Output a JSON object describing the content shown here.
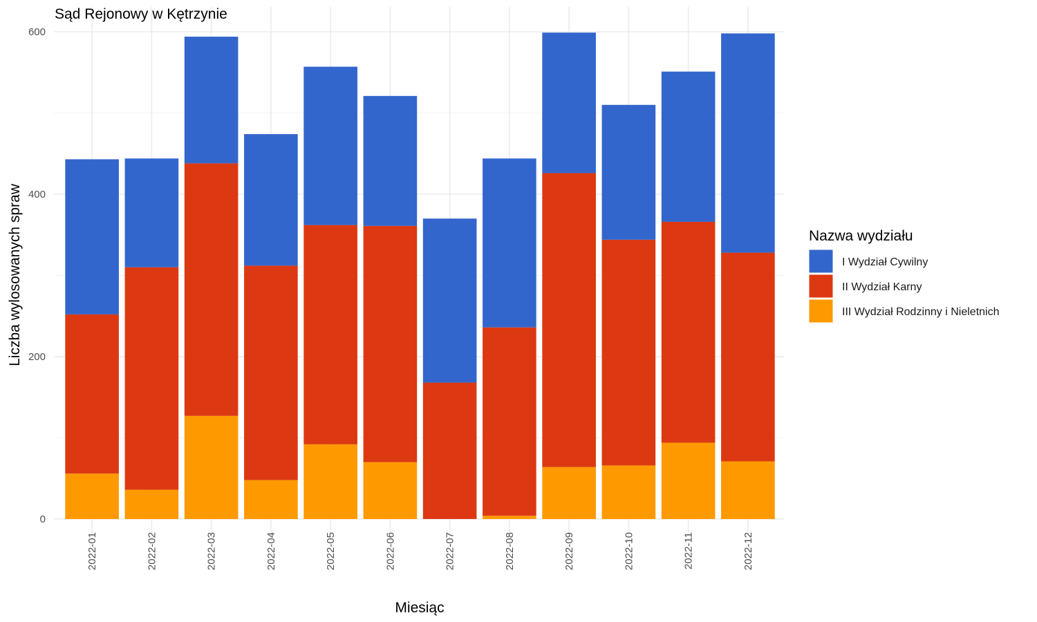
{
  "chart_data": {
    "type": "bar",
    "stacked": true,
    "title": "Sąd Rejonowy w Kętrzynie",
    "xlabel": "Miesiąc",
    "ylabel": "Liczba wylosowanych spraw",
    "ylim": [
      0,
      600
    ],
    "yticks": [
      0,
      200,
      400,
      600
    ],
    "grid": true,
    "legend_position": "right",
    "legend_title": "Nazwa wydziału",
    "categories": [
      "2022-01",
      "2022-02",
      "2022-03",
      "2022-04",
      "2022-05",
      "2022-06",
      "2022-07",
      "2022-08",
      "2022-09",
      "2022-10",
      "2022-11",
      "2022-12"
    ],
    "series": [
      {
        "name": "III Wydział Rodzinny i Nieletnich",
        "color": "#ff9900",
        "values": [
          56,
          36,
          127,
          48,
          92,
          70,
          0,
          4,
          64,
          66,
          94,
          71
        ]
      },
      {
        "name": "II Wydział Karny",
        "color": "#dc3912",
        "values": [
          196,
          274,
          311,
          264,
          270,
          291,
          168,
          232,
          362,
          278,
          272,
          257
        ]
      },
      {
        "name": "I Wydział Cywilny",
        "color": "#3366cc",
        "values": [
          191,
          134,
          156,
          162,
          195,
          160,
          202,
          208,
          173,
          166,
          185,
          270
        ]
      }
    ],
    "legend_order": [
      "I Wydział Cywilny",
      "II Wydział Karny",
      "III Wydział Rodzinny i Nieletnich"
    ]
  }
}
